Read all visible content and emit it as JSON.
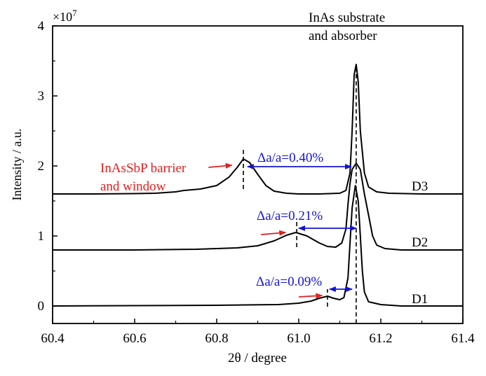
{
  "chart_data": {
    "type": "line",
    "title": "",
    "xlabel": "2θ / degree",
    "ylabel": "Intensity / a.u.",
    "y_multiplier": "×10",
    "y_multiplier_exp": "7",
    "xlim": [
      60.4,
      61.4
    ],
    "ylim": [
      -0.25,
      4
    ],
    "xticks": [
      60.4,
      60.6,
      60.8,
      61.0,
      61.2,
      61.4
    ],
    "xtick_labels": [
      "60.4",
      "60.6",
      "60.8",
      "61.0",
      "61.2",
      "61.4"
    ],
    "yticks": [
      0,
      1,
      2,
      3,
      4
    ],
    "ytick_labels": [
      "0",
      "1",
      "2",
      "3",
      "4"
    ],
    "grid": false,
    "series": [
      {
        "name": "D3",
        "points": [
          [
            60.4,
            1.6
          ],
          [
            60.5,
            1.6
          ],
          [
            60.6,
            1.605
          ],
          [
            60.65,
            1.61
          ],
          [
            60.7,
            1.63
          ],
          [
            60.72,
            1.65
          ],
          [
            60.76,
            1.67
          ],
          [
            60.8,
            1.72
          ],
          [
            60.83,
            1.84
          ],
          [
            60.85,
            1.98
          ],
          [
            60.865,
            2.1
          ],
          [
            60.88,
            2.05
          ],
          [
            60.9,
            1.88
          ],
          [
            60.92,
            1.72
          ],
          [
            60.94,
            1.64
          ],
          [
            60.97,
            1.61
          ],
          [
            61.0,
            1.6
          ],
          [
            61.05,
            1.6
          ],
          [
            61.1,
            1.61
          ],
          [
            61.115,
            1.65
          ],
          [
            61.125,
            1.9
          ],
          [
            61.13,
            2.5
          ],
          [
            61.135,
            3.3
          ],
          [
            61.14,
            3.45
          ],
          [
            61.145,
            3.2
          ],
          [
            61.15,
            2.5
          ],
          [
            61.16,
            1.9
          ],
          [
            61.17,
            1.7
          ],
          [
            61.19,
            1.63
          ],
          [
            61.22,
            1.61
          ],
          [
            61.3,
            1.6
          ],
          [
            61.4,
            1.6
          ]
        ]
      },
      {
        "name": "D2",
        "points": [
          [
            60.4,
            0.8
          ],
          [
            60.6,
            0.8
          ],
          [
            60.75,
            0.81
          ],
          [
            60.85,
            0.83
          ],
          [
            60.9,
            0.86
          ],
          [
            60.94,
            0.93
          ],
          [
            60.97,
            1.01
          ],
          [
            60.993,
            1.05
          ],
          [
            61.02,
            1.0
          ],
          [
            61.05,
            0.9
          ],
          [
            61.07,
            0.85
          ],
          [
            61.09,
            0.84
          ],
          [
            61.105,
            0.9
          ],
          [
            61.115,
            1.1
          ],
          [
            61.12,
            1.45
          ],
          [
            61.125,
            1.75
          ],
          [
            61.13,
            1.95
          ],
          [
            61.14,
            2.04
          ],
          [
            61.15,
            1.95
          ],
          [
            61.16,
            1.6
          ],
          [
            61.17,
            1.3
          ],
          [
            61.18,
            1.0
          ],
          [
            61.19,
            0.87
          ],
          [
            61.21,
            0.82
          ],
          [
            61.25,
            0.8
          ],
          [
            61.4,
            0.8
          ]
        ]
      },
      {
        "name": "D1",
        "points": [
          [
            60.4,
            0
          ],
          [
            60.8,
            0.01
          ],
          [
            60.95,
            0.02
          ],
          [
            61.0,
            0.04
          ],
          [
            61.03,
            0.07
          ],
          [
            61.05,
            0.11
          ],
          [
            61.07,
            0.14
          ],
          [
            61.085,
            0.11
          ],
          [
            61.1,
            0.09
          ],
          [
            61.11,
            0.12
          ],
          [
            61.12,
            0.4
          ],
          [
            61.125,
            0.9
          ],
          [
            61.13,
            1.4
          ],
          [
            61.138,
            1.72
          ],
          [
            61.145,
            1.5
          ],
          [
            61.15,
            1.0
          ],
          [
            61.155,
            0.5
          ],
          [
            61.16,
            0.2
          ],
          [
            61.17,
            0.06
          ],
          [
            61.2,
            0.02
          ],
          [
            61.25,
            0
          ],
          [
            61.4,
            0
          ]
        ]
      }
    ],
    "dashed_lines": [
      {
        "x": 61.14,
        "y": [
          -0.25,
          3.4
        ]
      },
      {
        "x": 60.865,
        "y": [
          1.67,
          2.25
        ]
      },
      {
        "x": 60.995,
        "y": [
          0.84,
          1.2
        ]
      },
      {
        "x": 61.07,
        "y": [
          -0.01,
          0.24
        ]
      }
    ],
    "annotations": {
      "strain": [
        {
          "label": "Δa/a=0.40%",
          "from": 60.875,
          "to": 61.128,
          "y": 1.99
        },
        {
          "label": "Δa/a=0.21%",
          "from": 61.0,
          "to": 61.14,
          "y": 1.11
        },
        {
          "label": "Δa/a=0.09%",
          "from": 61.075,
          "to": 61.13,
          "y": 0.24
        }
      ],
      "red_arrows": [
        {
          "from": [
            60.78,
            1.98
          ],
          "to": [
            60.837,
            2.01
          ]
        },
        {
          "from": [
            60.908,
            1.02
          ],
          "to": [
            60.968,
            1.05
          ]
        },
        {
          "from": [
            61.0,
            0.13
          ],
          "to": [
            61.057,
            0.15
          ]
        }
      ],
      "barrier_label": [
        "InAsSbP barrier",
        "and window"
      ],
      "substrate_label": [
        "InAs substrate",
        "and absorber"
      ],
      "series_labels": [
        "D3",
        "D2",
        "D1"
      ]
    },
    "colors": {
      "line": "#000000",
      "strain": "#1414d2",
      "barrier": "#e02020"
    }
  }
}
